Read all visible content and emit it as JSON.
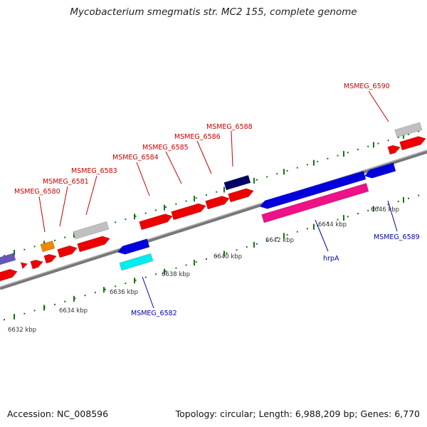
{
  "title": "Mycobacterium smegmatis str. MC2 155, complete genome",
  "footer": {
    "accession": "Accession: NC_008596",
    "summary": "Topology: circular; Length: 6,988,209 bp; Genes: 6,770"
  },
  "colors": {
    "red_gene": "#ee0000",
    "blue_gene": "#0000dd",
    "navy_gene": "#000066",
    "cyan_gene": "#00eeee",
    "magenta_gene": "#ee1188",
    "grey_gene": "#c0c0c0",
    "orange_gene": "#ee8800",
    "slate_gene": "#6655bb",
    "forward_label": "#cc0000",
    "reverse_label": "#0000aa",
    "tick": "#117711",
    "axis": "#888888"
  },
  "scale": {
    "unit": "kbp",
    "labels": [
      "6632 kbp",
      "6634 kbp",
      "6636 kbp",
      "6638 kbp",
      "6640 kbp",
      "6642 kbp",
      "6644 kbp",
      "6646 kbp"
    ]
  },
  "forward_genes": [
    {
      "name": "MSMEG_6580",
      "label": "MSMEG_6580"
    },
    {
      "name": "MSMEG_6581",
      "label": "MSMEG_6581"
    },
    {
      "name": "MSMEG_6583",
      "label": "MSMEG_6583"
    },
    {
      "name": "MSMEG_6584",
      "label": "MSMEG_6584"
    },
    {
      "name": "MSMEG_6585",
      "label": "MSMEG_6585"
    },
    {
      "name": "MSMEG_6586",
      "label": "MSMEG_6586"
    },
    {
      "name": "MSMEG_6588",
      "label": "MSMEG_6588"
    },
    {
      "name": "MSMEG_6590",
      "label": "MSMEG_6590"
    }
  ],
  "reverse_genes": [
    {
      "name": "MSMEG_6582",
      "label": "MSMEG_6582"
    },
    {
      "name": "hrpA",
      "label": "hrpA"
    },
    {
      "name": "MSMEG_6589",
      "label": "MSMEG_6589"
    }
  ]
}
